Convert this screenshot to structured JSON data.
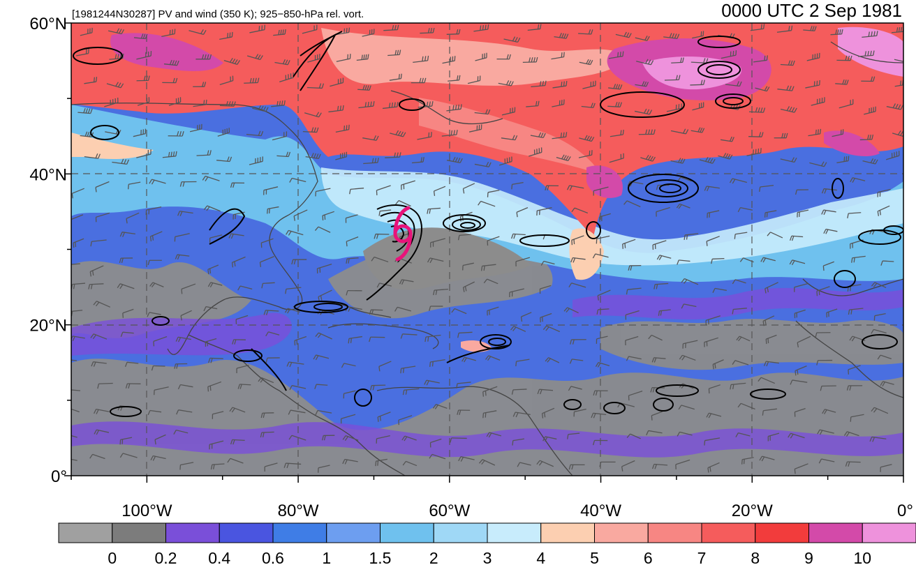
{
  "header": {
    "title": "[1981244N30287] PV and wind (350 K); 925−850-hPa rel. vort.",
    "time": "0000 UTC 2 Sep 1981"
  },
  "map": {
    "lon_range": [
      -110,
      0
    ],
    "lat_range": [
      0,
      60
    ],
    "lat_labels": [
      "0°",
      "20°N",
      "40°N",
      "60°N"
    ],
    "lat_values": [
      0,
      20,
      40,
      60
    ],
    "lon_labels": [
      "100°W",
      "80°W",
      "60°W",
      "40°W",
      "20°W",
      "0°"
    ],
    "lon_values": [
      -100,
      -80,
      -60,
      -40,
      -20,
      0
    ],
    "storm_symbol": {
      "name": "tropical-cyclone-icon",
      "lon": -67,
      "lat": 31.5,
      "color": "#e8137a"
    }
  },
  "colorbar": {
    "labels": [
      "0",
      "0.2",
      "0.4",
      "0.6",
      "1",
      "1.5",
      "2",
      "3",
      "4",
      "5",
      "6",
      "7",
      "8",
      "9",
      "10"
    ],
    "colors": [
      "#a0a0a0",
      "#7c7c7c",
      "#7a4fd9",
      "#4a55e0",
      "#3f7de6",
      "#6d9ef0",
      "#6fc1ee",
      "#9fd8f6",
      "#c8ecfc",
      "#fccfb1",
      "#f9a9a0",
      "#f78683",
      "#f55c5c",
      "#f23c3c",
      "#d34aa9",
      "#ee92dc"
    ]
  }
}
